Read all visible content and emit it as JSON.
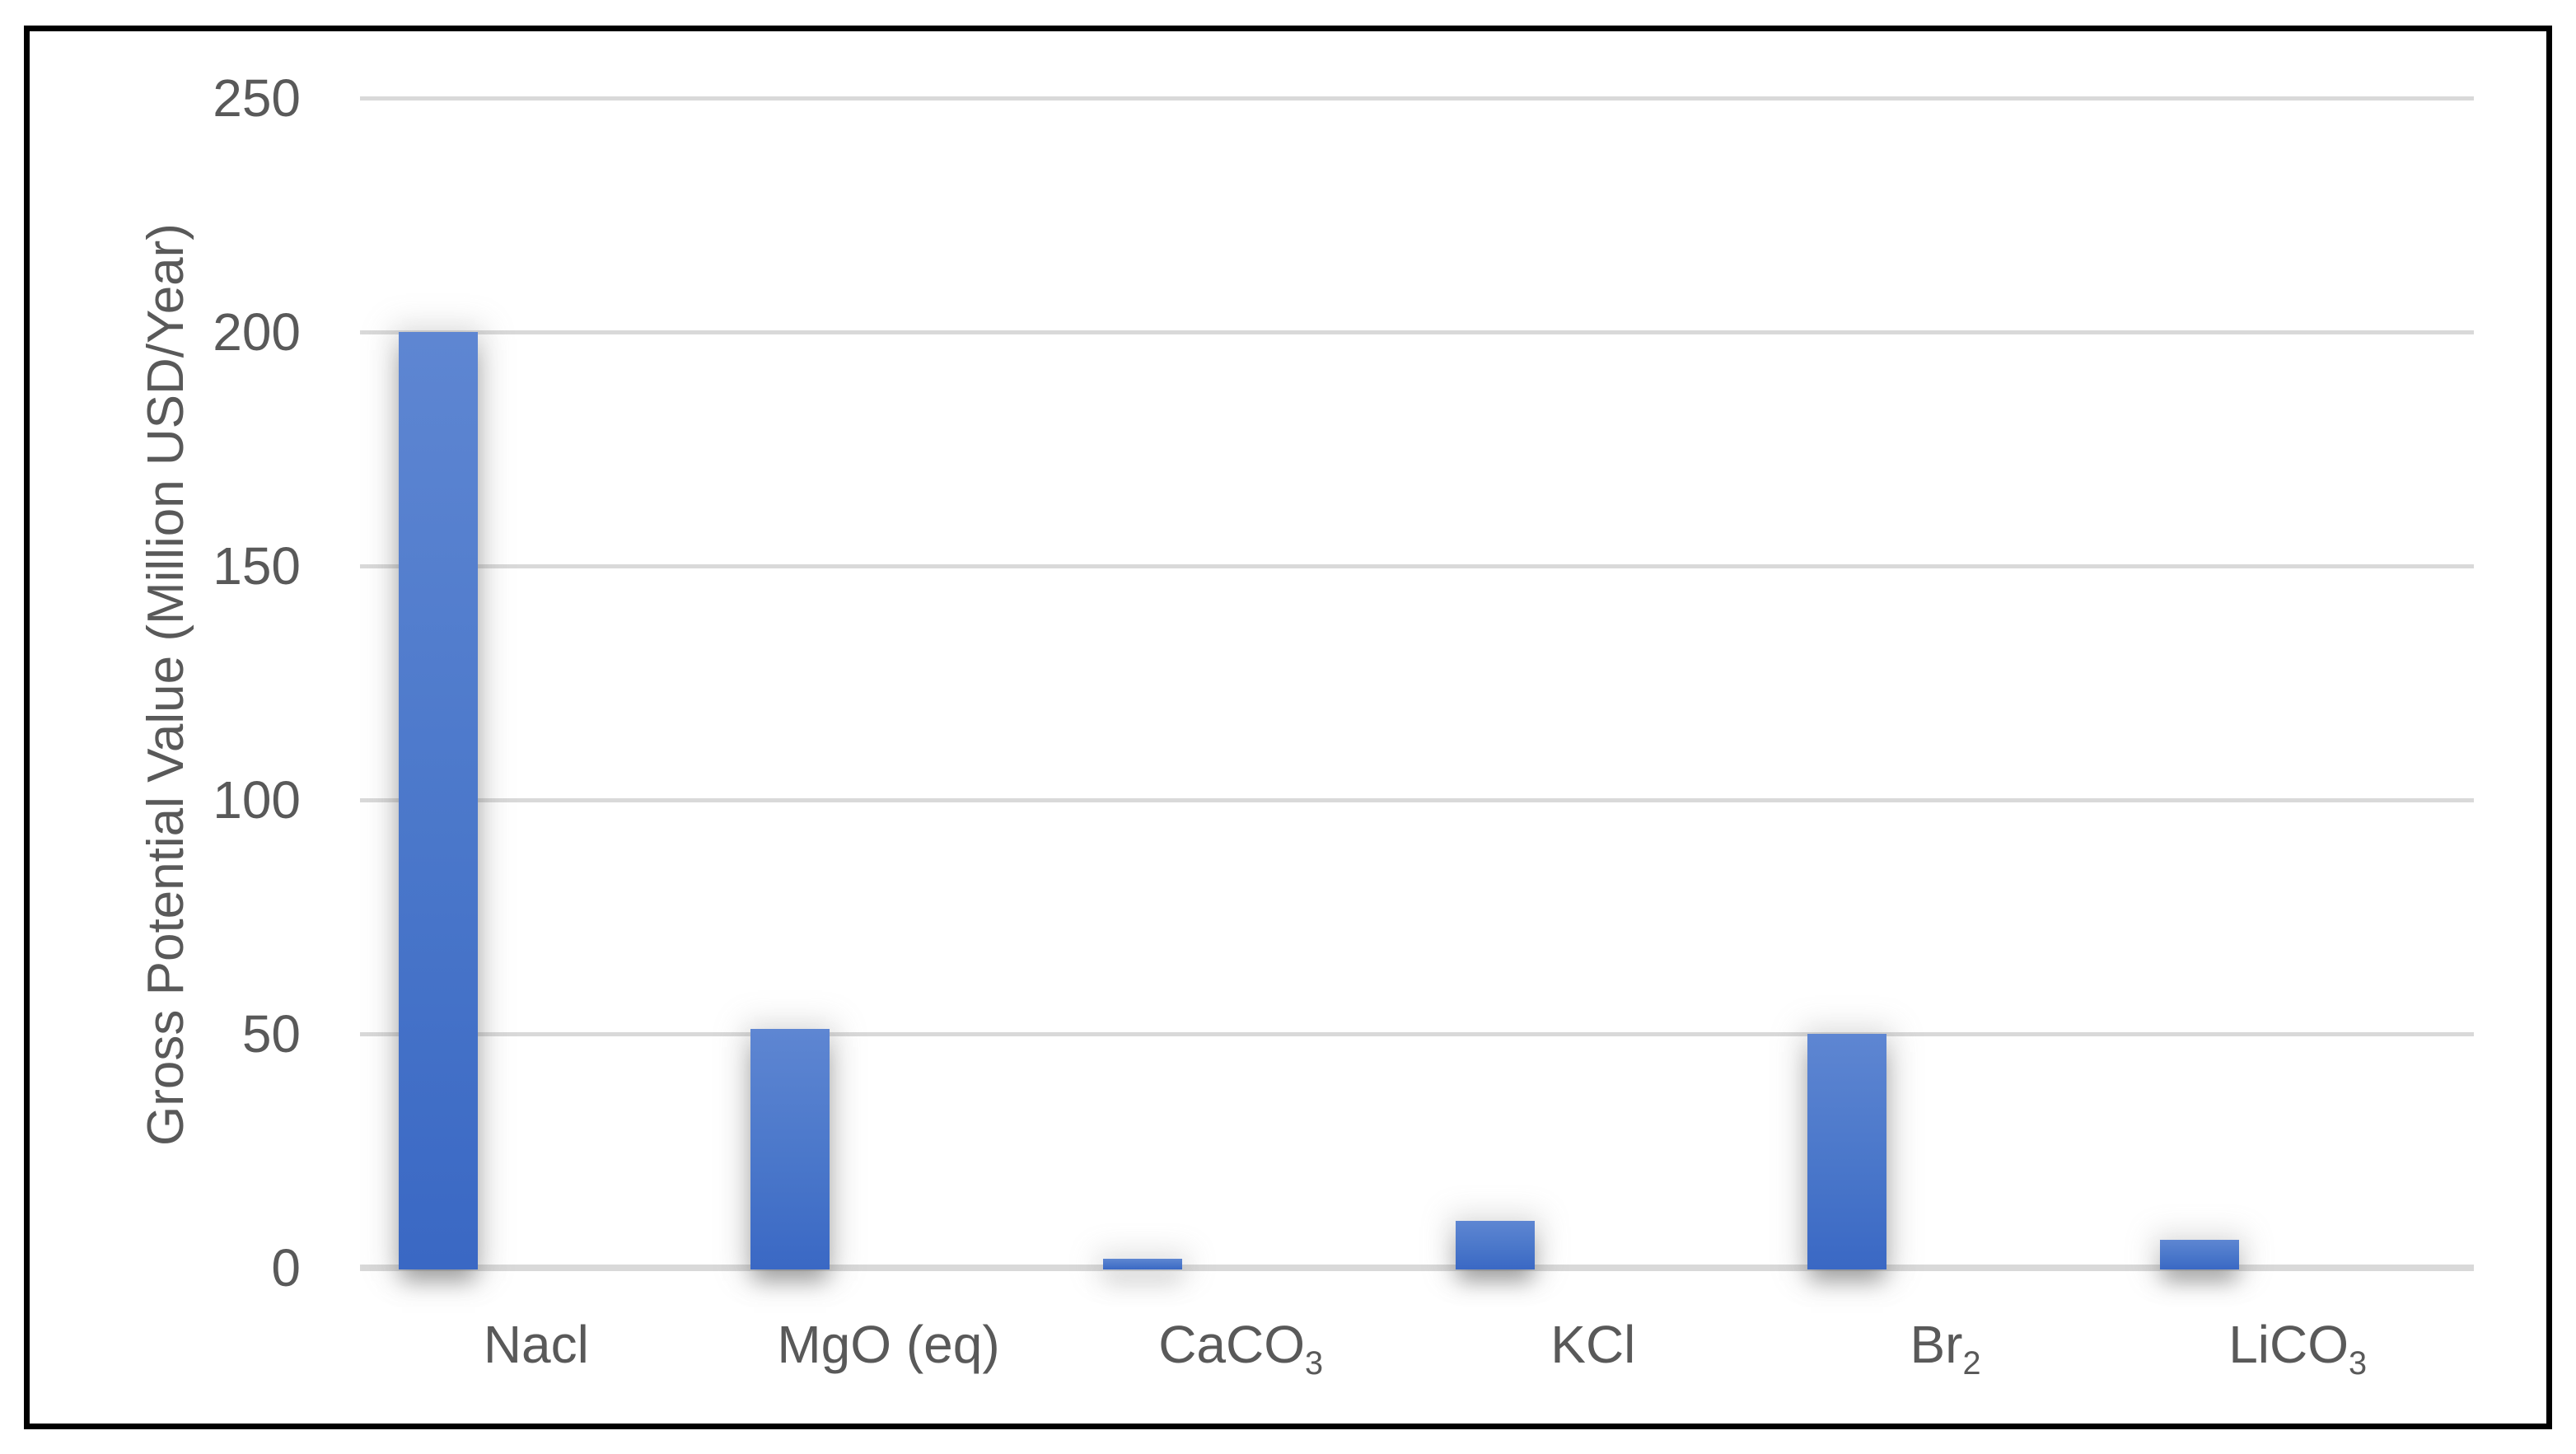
{
  "chart_data": {
    "type": "bar",
    "title": "",
    "xlabel": "",
    "ylabel": "Gross Potential Value (Million USD/Year)",
    "categories": [
      {
        "main": "Nacl",
        "sub": ""
      },
      {
        "main": "MgO (eq)",
        "sub": ""
      },
      {
        "main": "CaCO",
        "sub": "3"
      },
      {
        "main": "KCl",
        "sub": ""
      },
      {
        "main": "Br",
        "sub": "2"
      },
      {
        "main": "LiCO",
        "sub": "3"
      }
    ],
    "values": [
      200,
      51,
      2,
      10,
      50,
      6
    ],
    "yticks": [
      0,
      50,
      100,
      150,
      200,
      250
    ],
    "ylim": [
      0,
      250
    ],
    "grid": true,
    "legend": false,
    "bar_color_top": "#5E86D2",
    "bar_color_bottom": "#3A68C4"
  },
  "colors": {
    "axis_text": "#595959",
    "gridline": "#D9D9D9",
    "frame_border": "#000000",
    "background": "#FFFFFF"
  }
}
